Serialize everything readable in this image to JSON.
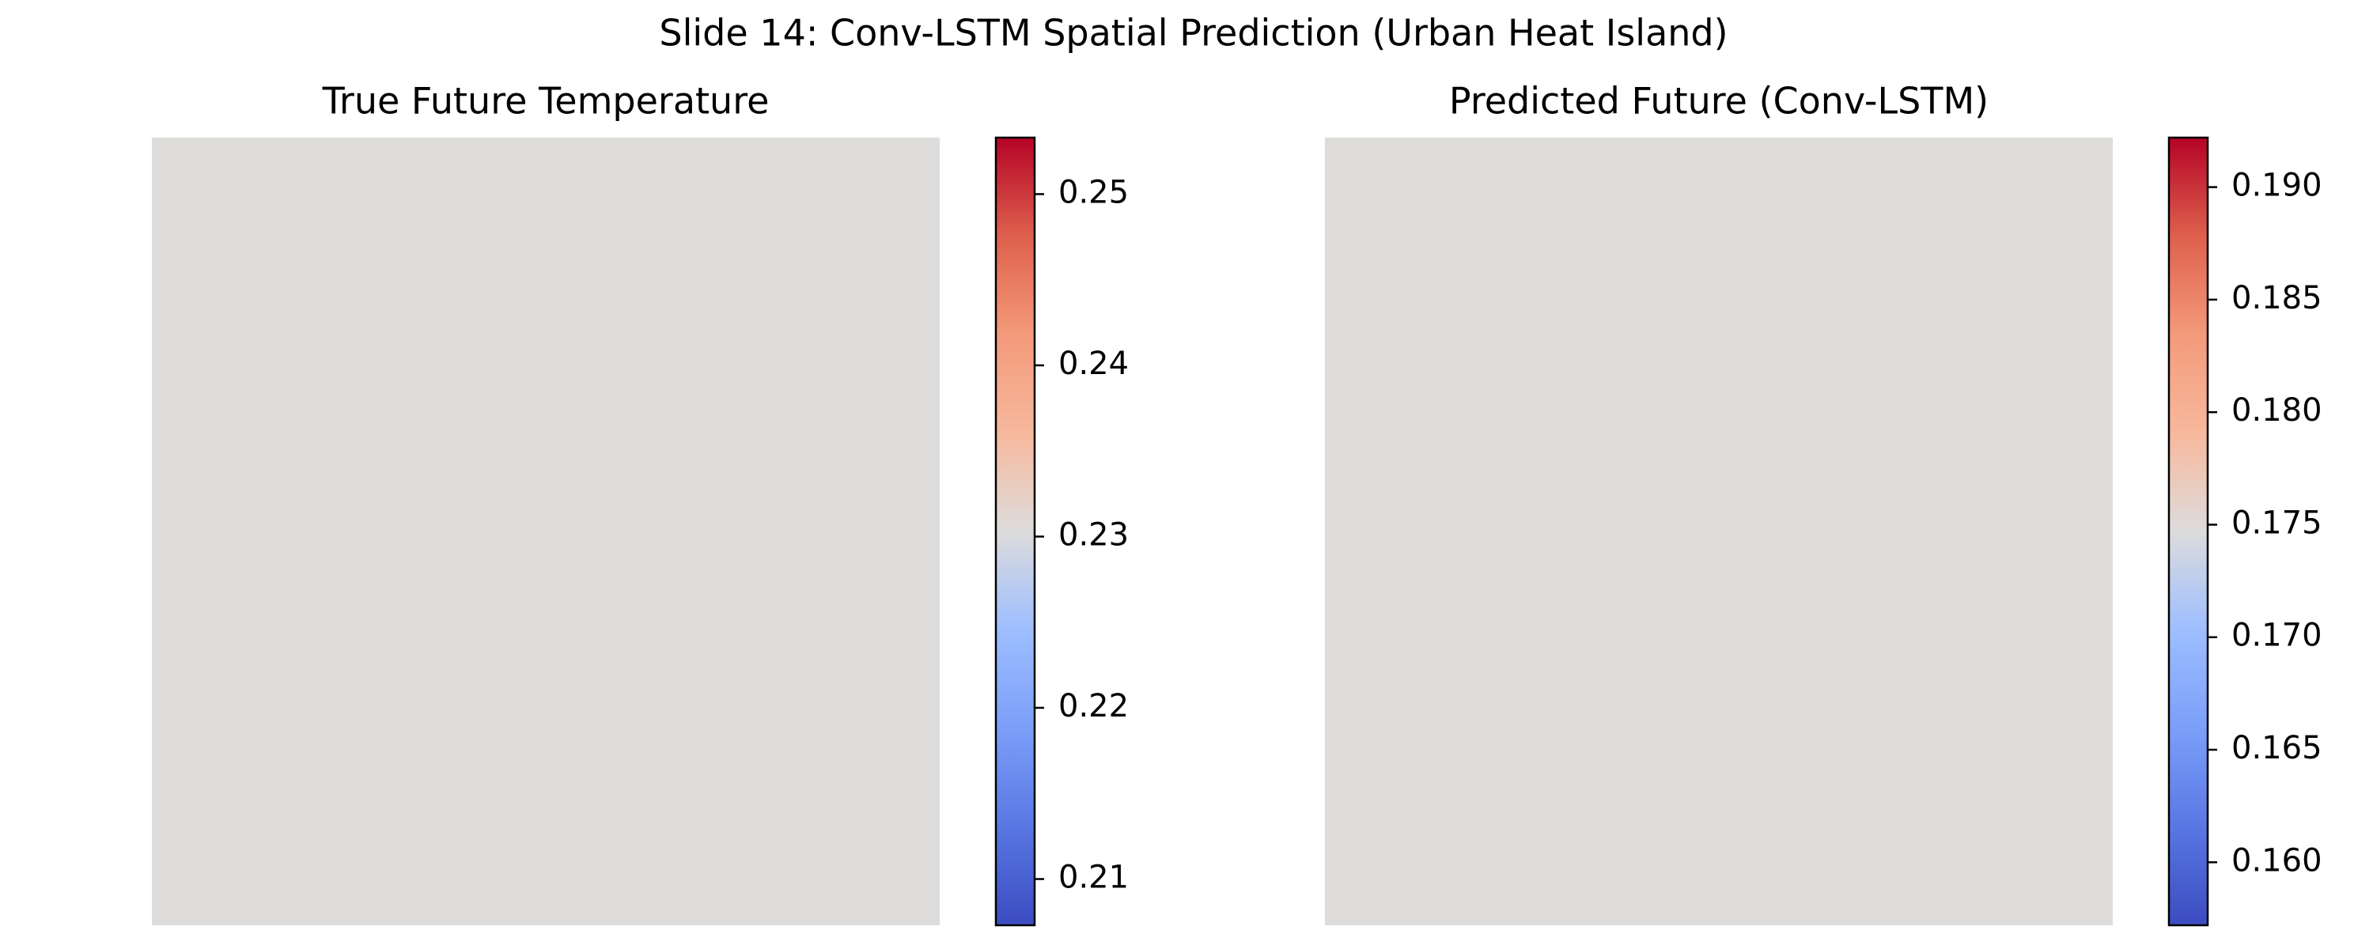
{
  "figure": {
    "suptitle": "Slide 14: Conv-LSTM Spatial Prediction (Urban Heat Island)"
  },
  "chart_data": [
    {
      "type": "heatmap",
      "title": "True Future Temperature",
      "colormap": "coolwarm",
      "axes_visible": false,
      "field_color": "#dddcdb",
      "values": [
        [
          0.2305
        ]
      ],
      "colorbar": {
        "vmin": 0.2073,
        "vmax": 0.2533,
        "ticks": [
          0.21,
          0.22,
          0.23,
          0.24,
          0.25
        ],
        "tick_labels": [
          "0.21",
          "0.22",
          "0.23",
          "0.24",
          "0.25"
        ]
      }
    },
    {
      "type": "heatmap",
      "title": "Predicted Future (Conv-LSTM)",
      "colormap": "coolwarm",
      "axes_visible": false,
      "field_color": "#dddcdb",
      "values": [
        [
          0.1747
        ]
      ],
      "colorbar": {
        "vmin": 0.1572,
        "vmax": 0.1922,
        "ticks": [
          0.16,
          0.165,
          0.17,
          0.175,
          0.18,
          0.185,
          0.19
        ],
        "tick_labels": [
          "0.160",
          "0.165",
          "0.170",
          "0.175",
          "0.180",
          "0.185",
          "0.190"
        ]
      }
    }
  ]
}
